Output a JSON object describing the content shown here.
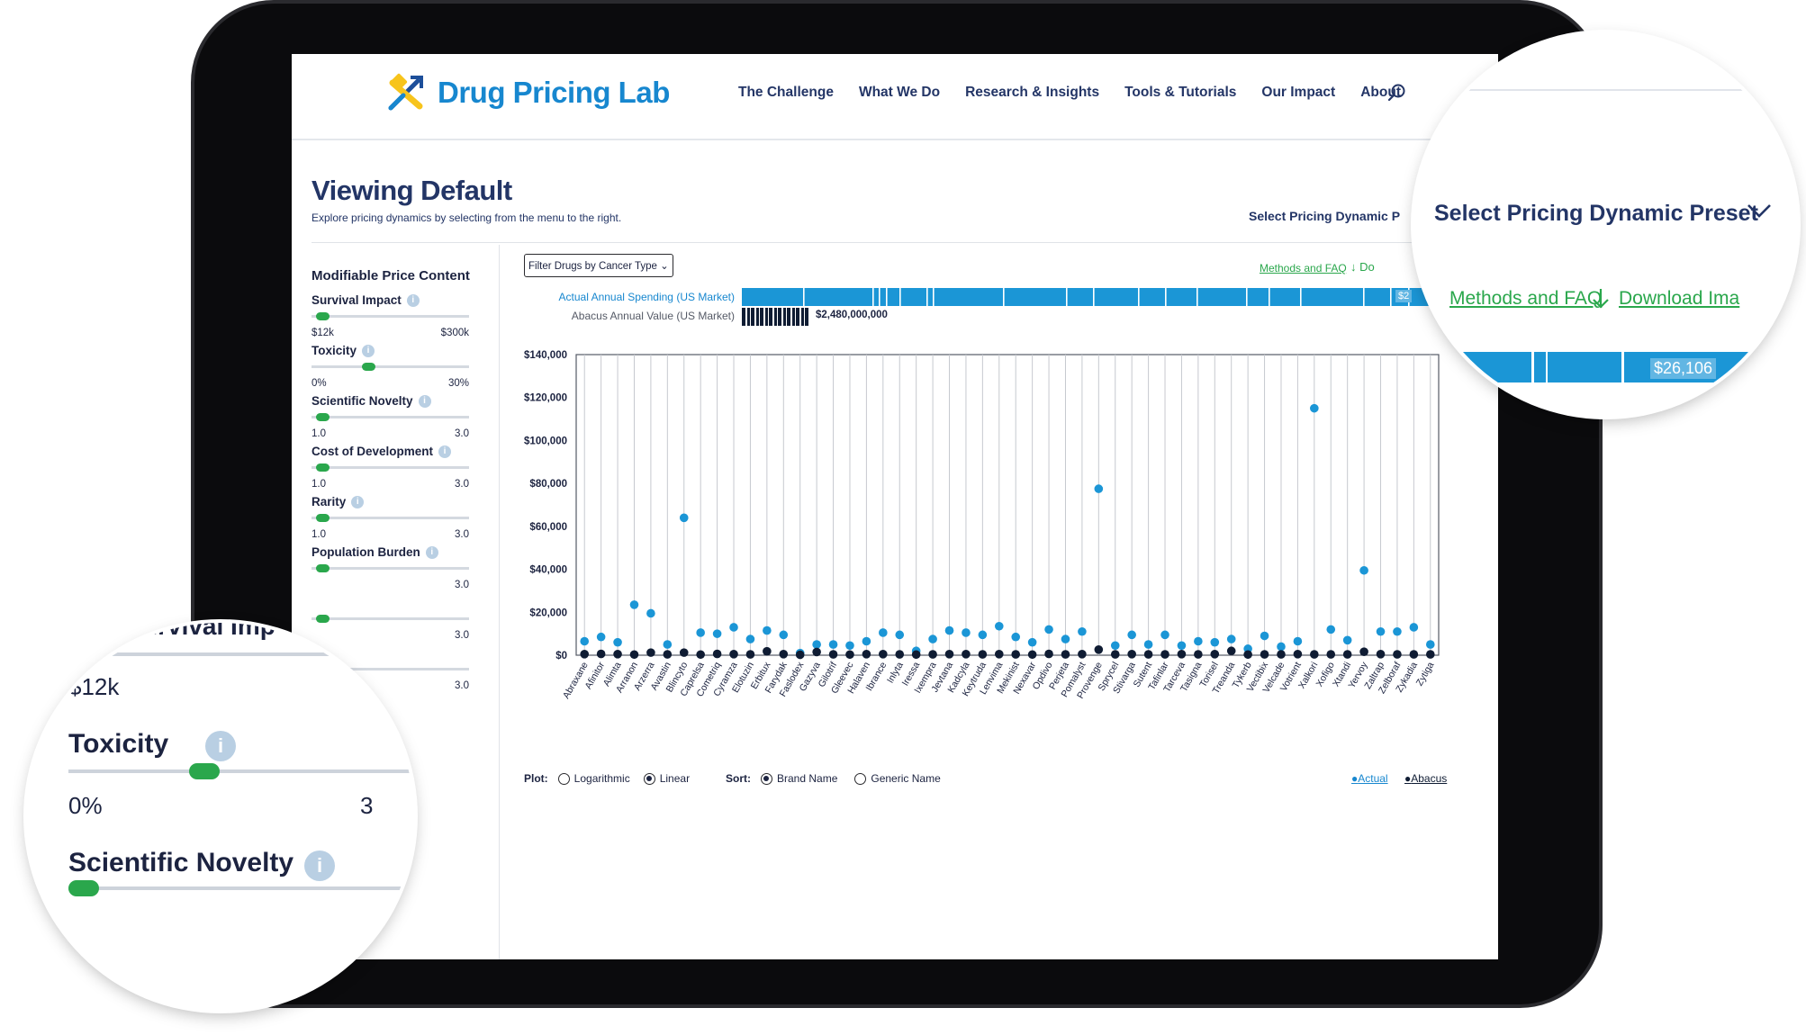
{
  "header": {
    "logo_text": "Drug Pricing Lab",
    "nav": [
      "The Challenge",
      "What We Do",
      "Research & Insights",
      "Tools & Tutorials",
      "Our Impact",
      "About"
    ]
  },
  "page": {
    "title": "Viewing Default",
    "subtitle": "Explore pricing dynamics by selecting from the menu to the right.",
    "preset_label": "Select Pricing Dynamic P",
    "methods_link": "Methods and FAQ",
    "download_link": "Do"
  },
  "sidebar": {
    "title": "Modifiable Price Content",
    "factors": [
      {
        "label": "Survival Impact",
        "min": "$12k",
        "max": "$300k",
        "level": 0.03
      },
      {
        "label": "Toxicity",
        "min": "0%",
        "max": "30%",
        "level": 0.35
      },
      {
        "label": "Scientific Novelty",
        "min": "1.0",
        "max": "3.0",
        "level": 0.03
      },
      {
        "label": "Cost of Development",
        "min": "1.0",
        "max": "3.0",
        "level": 0.03
      },
      {
        "label": "Rarity",
        "min": "1.0",
        "max": "3.0",
        "level": 0.03
      },
      {
        "label": "Population Burden",
        "min": "",
        "max": "3.0",
        "level": 0.03
      },
      {
        "label": "",
        "min": "",
        "max": "3.0",
        "level": 0.03
      },
      {
        "label": "",
        "min": "",
        "max": "3.0",
        "level": 0.03
      }
    ]
  },
  "controls": {
    "filter_label": "Filter Drugs by Cancer Type",
    "actual_label": "Actual Annual Spending (US Market)",
    "abacus_label": "Abacus Annual Value (US Market)",
    "abacus_value": "$2,480,000,000",
    "actual_value_cut": "$2",
    "plot_label": "Plot:",
    "plot_options": [
      "Logarithmic",
      "Linear"
    ],
    "plot_selected": "Linear",
    "sort_label": "Sort:",
    "sort_options": [
      "Brand Name",
      "Generic Name"
    ],
    "sort_selected": "Brand Name",
    "legend_actual": "Actual",
    "legend_abacus": "Abacus"
  },
  "chart_data": {
    "type": "scatter",
    "ylim": [
      0,
      140000
    ],
    "yticks": [
      "$0",
      "$20,000",
      "$40,000",
      "$60,000",
      "$80,000",
      "$100,000",
      "$120,000",
      "$140,000"
    ],
    "categories": [
      "Abraxane",
      "Afinitor",
      "Alimta",
      "Arranon",
      "Arzerra",
      "Avastin",
      "Blincyto",
      "Caprelsa",
      "Cometriq",
      "Cyramza",
      "Elotuzin",
      "Erbitux",
      "Farydak",
      "Faslodex",
      "Gazyva",
      "Gilotrif",
      "Gleevec",
      "Halaven",
      "Ibrance",
      "Inlyta",
      "Iressa",
      "Ixempra",
      "Jevtana",
      "Kadcyla",
      "Keytruda",
      "Lenvima",
      "Mekinist",
      "Nexavar",
      "Opdivo",
      "Perjeta",
      "Pomalyst",
      "Provenge",
      "Sprycel",
      "Stivarga",
      "Sutent",
      "Tafinlar",
      "Tarceva",
      "Tasigna",
      "Torisel",
      "Treanda",
      "Tykerb",
      "Vectibix",
      "Velcade",
      "Votrient",
      "Xalkori",
      "Xofigo",
      "Xtandi",
      "Yervoy",
      "Zaltrap",
      "Zelboraf",
      "Zykadia",
      "Zytiga"
    ],
    "series": [
      {
        "name": "Actual",
        "color": "#1b96d6",
        "values": [
          6500,
          8500,
          6000,
          23500,
          19500,
          5000,
          64000,
          10500,
          10000,
          13000,
          7500,
          11500,
          9500,
          1000,
          5000,
          5000,
          4500,
          6500,
          10500,
          9500,
          2000,
          7500,
          11500,
          10500,
          9500,
          13500,
          8500,
          6000,
          12000,
          7500,
          11000,
          77500,
          4500,
          9500,
          5000,
          9500,
          4500,
          6500,
          6000,
          7500,
          3000,
          9000,
          4000,
          6500,
          115000,
          12000,
          7000,
          39500,
          11000,
          11000,
          13000,
          5000
        ]
      },
      {
        "name": "Abacus",
        "color": "#0f1c33",
        "values": [
          500,
          600,
          500,
          300,
          1200,
          400,
          1200,
          300,
          600,
          500,
          400,
          1800,
          500,
          200,
          1500,
          400,
          300,
          500,
          500,
          400,
          300,
          400,
          500,
          500,
          400,
          500,
          400,
          300,
          600,
          400,
          500,
          2600,
          400,
          500,
          400,
          400,
          500,
          400,
          500,
          2000,
          300,
          400,
          400,
          500,
          400,
          400,
          400,
          1600,
          500,
          400,
          400,
          400
        ]
      }
    ]
  },
  "zoom_top_right": {
    "preset_label": "Select Pricing Dynamic Preset",
    "methods_link": "Methods and FAQ",
    "download_link": "Download Ima",
    "actual_value_cut": "$26,106"
  },
  "zoom_bottom_left": {
    "cut_label_top": "urvival Imp",
    "min_survival": "$12k",
    "toxicity_label": "Toxicity",
    "toxicity_min": "0%",
    "toxicity_max_cut": "3",
    "novelty_label": "Scientific Novelty",
    "info_glyph": "i",
    "toxicity_level": 0.35
  }
}
